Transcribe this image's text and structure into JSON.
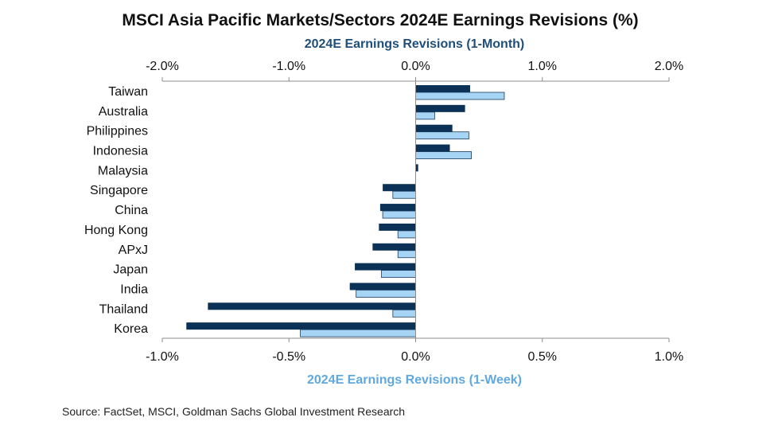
{
  "chart_data": {
    "type": "bar",
    "orientation": "horizontal",
    "title": "MSCI Asia Pacific Markets/Sectors 2024E Earnings Revisions (%)",
    "categories": [
      "Taiwan",
      "Australia",
      "Philippines",
      "Indonesia",
      "Malaysia",
      "Singapore",
      "China",
      "Hong Kong",
      "APxJ",
      "Japan",
      "India",
      "Thailand",
      "Korea"
    ],
    "series": [
      {
        "name": "2024E Earnings Revisions (1-Month)",
        "axis": "top",
        "color": "#0b3256",
        "values": [
          0.43,
          0.39,
          0.29,
          0.27,
          0.02,
          -0.26,
          -0.28,
          -0.29,
          -0.34,
          -0.48,
          -0.52,
          -1.64,
          -1.81
        ]
      },
      {
        "name": "2024E Earnings Revisions (1-Week)",
        "axis": "bottom",
        "color": "#a6d4f4",
        "values": [
          0.35,
          0.075,
          0.21,
          0.22,
          0.0,
          -0.09,
          -0.13,
          -0.07,
          -0.07,
          -0.135,
          -0.235,
          -0.09,
          -0.455
        ]
      }
    ],
    "top_axis": {
      "title": "2024E Earnings Revisions (1-Month)",
      "title_color": "#1f4e79",
      "range": [
        -2.0,
        2.0
      ],
      "ticks": [
        -2.0,
        -1.0,
        0.0,
        1.0,
        2.0
      ],
      "tick_labels": [
        "-2.0%",
        "-1.0%",
        "0.0%",
        "1.0%",
        "2.0%"
      ]
    },
    "bottom_axis": {
      "title": "2024E Earnings Revisions (1-Week)",
      "title_color": "#5fa9e0",
      "range": [
        -1.0,
        1.0
      ],
      "ticks": [
        -1.0,
        -0.5,
        0.0,
        0.5,
        1.0
      ],
      "tick_labels": [
        "-1.0%",
        "-0.5%",
        "0.0%",
        "0.5%",
        "1.0%"
      ]
    },
    "grid": false,
    "legend": "none"
  },
  "source": "Source: FactSet, MSCI, Goldman Sachs Global Investment Research"
}
